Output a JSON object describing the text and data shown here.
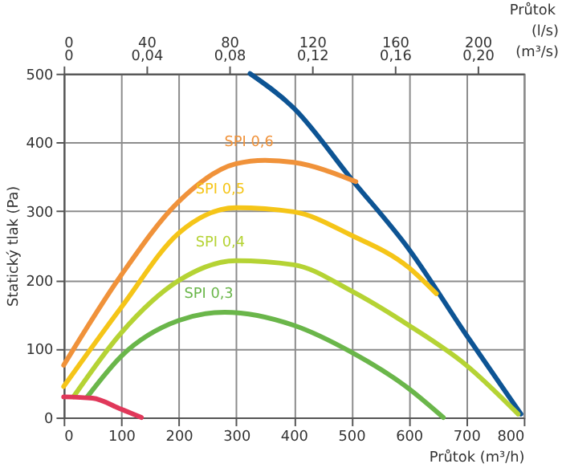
{
  "chart_data": {
    "type": "line",
    "xlabel": "Průtok (m³/h)",
    "ylabel": "Statický tlak (Pa)",
    "annotations": [
      "Průtok",
      "(l/s)",
      "(m³/s)",
      "0",
      "0,04",
      "0,08",
      "0,12",
      "0,16",
      "0,20"
    ],
    "xlim": [
      0,
      800
    ],
    "xticks": [
      0,
      100,
      200,
      300,
      400,
      500,
      600,
      700,
      800
    ],
    "ylim": [
      0,
      500
    ],
    "yticks": [
      0,
      100,
      200,
      300,
      400,
      500
    ],
    "x2lim": [
      0,
      222.22
    ],
    "x2ticks": [
      0,
      40,
      80,
      120,
      160,
      200
    ],
    "grid": true,
    "legend": false,
    "marker": "none",
    "line_style": "solid",
    "series": [
      {
        "color": "#0d5494",
        "x": [
          324,
          400,
          500,
          600,
          700,
          795
        ],
        "values": [
          500,
          450,
          347,
          245,
          120,
          5
        ]
      },
      {
        "name": "SPI 0,6",
        "color": "#f0923a",
        "x": [
          0,
          100,
          200,
          300,
          350,
          400,
          508
        ],
        "values": [
          76,
          207,
          314,
          369,
          374,
          371,
          343
        ]
      },
      {
        "name": "SPI 0,5",
        "color": "#f5c518",
        "x": [
          0,
          100,
          200,
          300,
          400,
          500,
          600,
          648
        ],
        "values": [
          45,
          160,
          268,
          305,
          299,
          265,
          218,
          180
        ]
      },
      {
        "name": "SPI 0,4",
        "color": "#b5d334",
        "x": [
          17,
          100,
          200,
          300,
          400,
          500,
          600,
          700,
          790
        ],
        "values": [
          30,
          123,
          199,
          228,
          222,
          184,
          134,
          76,
          5
        ]
      },
      {
        "name": "SPI 0,3",
        "color": "#6ab64a",
        "x": [
          41,
          100,
          200,
          280,
          400,
          500,
          600,
          660
        ],
        "values": [
          30,
          89,
          141,
          153,
          134,
          95,
          42,
          0
        ]
      },
      {
        "color": "#e0385a",
        "x": [
          0,
          50,
          100,
          135
        ],
        "values": [
          30,
          28,
          12,
          0
        ]
      }
    ]
  }
}
